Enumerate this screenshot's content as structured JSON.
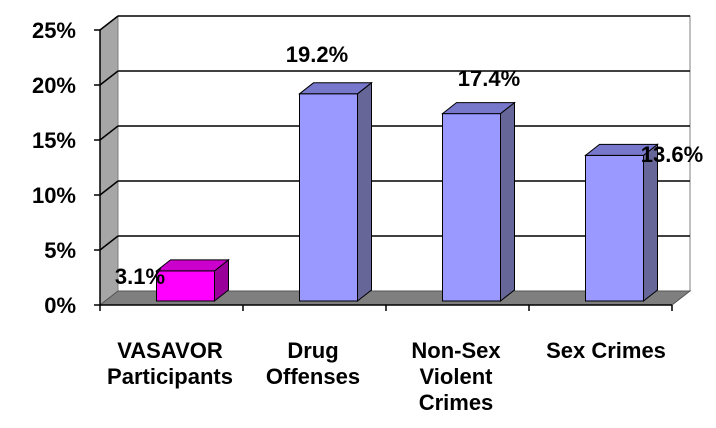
{
  "chart_data": {
    "type": "bar",
    "title": "",
    "xlabel": "",
    "ylabel": "",
    "categories": [
      [
        "VASAVOR",
        "Participants"
      ],
      [
        "Drug",
        "Offenses"
      ],
      [
        "Non-Sex",
        "Violent",
        "Crimes"
      ],
      [
        "Sex Crimes"
      ]
    ],
    "values": [
      3.1,
      19.2,
      17.4,
      13.6
    ],
    "data_labels": [
      "3.1%",
      "19.2%",
      "17.4%",
      "13.6%"
    ],
    "ylim": [
      0,
      25
    ],
    "yticks": [
      0,
      5,
      10,
      15,
      20,
      25
    ],
    "ytick_labels": [
      "0%",
      "5%",
      "10%",
      "15%",
      "20%",
      "25%"
    ],
    "grid": true,
    "style": "3d-column",
    "colors": {
      "highlight_front": "#ff00ff",
      "highlight_side": "#990099",
      "highlight_top": "#cc00cc",
      "bar_front": "#9999ff",
      "bar_side": "#666699",
      "bar_top": "#7777cc",
      "wall": "#ffffff",
      "floor": "#7f7f7f",
      "side_wall": "#a6a6a6",
      "gridline": "#000000"
    }
  }
}
